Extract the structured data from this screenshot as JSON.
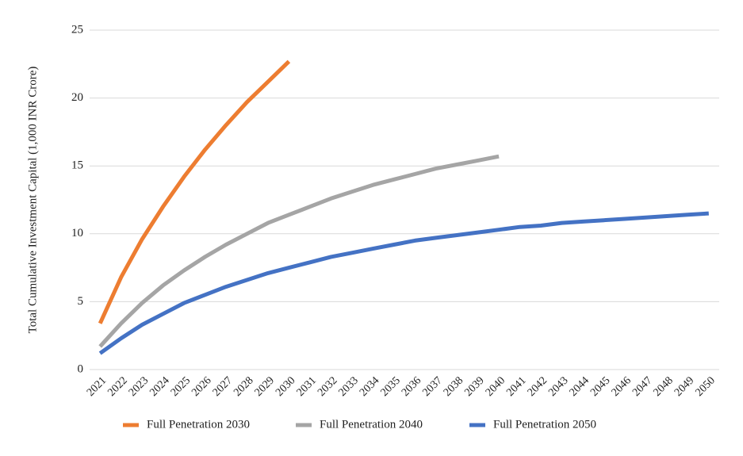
{
  "chart_data": {
    "type": "line",
    "y_label": "Total Cumulative Investment Capital (1,000 INR Crore)",
    "categories": [
      "2021",
      "2022",
      "2023",
      "2024",
      "2025",
      "2026",
      "2027",
      "2028",
      "2029",
      "2030",
      "2031",
      "2032",
      "2033",
      "2034",
      "2035",
      "2036",
      "2037",
      "2038",
      "2039",
      "2040",
      "2041",
      "2042",
      "2043",
      "2044",
      "2045",
      "2046",
      "2047",
      "2048",
      "2049",
      "2050"
    ],
    "series": [
      {
        "name": "Full Penetration 2030",
        "color": "#ed7d31",
        "values": [
          3.4,
          6.8,
          9.6,
          12.0,
          14.2,
          16.2,
          18.0,
          19.7,
          21.2,
          22.7,
          null,
          null,
          null,
          null,
          null,
          null,
          null,
          null,
          null,
          null,
          null,
          null,
          null,
          null,
          null,
          null,
          null,
          null,
          null,
          null
        ]
      },
      {
        "name": "Full Penetration 2040",
        "color": "#a5a5a5",
        "values": [
          1.7,
          3.4,
          4.9,
          6.2,
          7.3,
          8.3,
          9.2,
          10.0,
          10.8,
          11.4,
          12.0,
          12.6,
          13.1,
          13.6,
          14.0,
          14.4,
          14.8,
          15.1,
          15.4,
          15.7,
          null,
          null,
          null,
          null,
          null,
          null,
          null,
          null,
          null,
          null
        ]
      },
      {
        "name": "Full Penetration 2050",
        "color": "#4472c4",
        "values": [
          1.2,
          2.3,
          3.3,
          4.1,
          4.9,
          5.5,
          6.1,
          6.6,
          7.1,
          7.5,
          7.9,
          8.3,
          8.6,
          8.9,
          9.2,
          9.5,
          9.7,
          9.9,
          10.1,
          10.3,
          10.5,
          10.6,
          10.8,
          10.9,
          11.0,
          11.1,
          11.2,
          11.3,
          11.4,
          11.5
        ]
      }
    ],
    "ylim": [
      0,
      25
    ],
    "yticks": [
      0,
      5,
      10,
      15,
      20,
      25
    ],
    "grid": true,
    "legend": "bottom"
  }
}
